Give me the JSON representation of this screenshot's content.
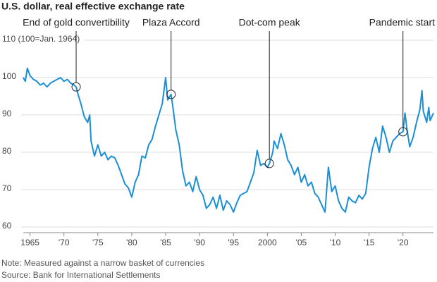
{
  "chart_data": {
    "type": "line",
    "title": "U.S. dollar, real effective exchange rate",
    "notes": [
      "Note: Measured against a narrow basket of currencies",
      "Source: Bank for International Settlements"
    ],
    "x": [
      1964.0,
      1964.3,
      1964.6,
      1965,
      1965.5,
      1966,
      1966.5,
      1967,
      1967.5,
      1968,
      1968.5,
      1969,
      1969.5,
      1970,
      1970.5,
      1971,
      1971.5,
      1971.8,
      1972,
      1972.5,
      1973,
      1973.5,
      1973.8,
      1974,
      1974.5,
      1975,
      1975.5,
      1976,
      1976.5,
      1977,
      1977.5,
      1978,
      1978.5,
      1979,
      1979.5,
      1980,
      1980.5,
      1981,
      1981.5,
      1982,
      1982.5,
      1983,
      1983.5,
      1984,
      1984.5,
      1985,
      1985.3,
      1985.8,
      1986,
      1986.5,
      1987,
      1987.5,
      1988,
      1988.5,
      1989,
      1989.5,
      1990,
      1990.5,
      1991,
      1991.5,
      1992,
      1992.5,
      1993,
      1993.5,
      1994,
      1994.5,
      1995,
      1995.5,
      1996,
      1996.5,
      1997,
      1997.5,
      1998,
      1998.5,
      1999,
      1999.5,
      2000,
      2000.3,
      2000.8,
      2001,
      2001.5,
      2002,
      2002.5,
      2003,
      2003.5,
      2004,
      2004.5,
      2005,
      2005.5,
      2006,
      2006.5,
      2007,
      2007.5,
      2008,
      2008.5,
      2009,
      2009.5,
      2010,
      2010.5,
      2011,
      2011.5,
      2012,
      2012.5,
      2013,
      2013.5,
      2014,
      2014.5,
      2015,
      2015.5,
      2016,
      2016.5,
      2017,
      2017.5,
      2018,
      2018.5,
      2019,
      2019.5,
      2020,
      2020.3,
      2020.6,
      2021,
      2021.5,
      2022,
      2022.5,
      2022.8,
      2023,
      2023.5,
      2023.8,
      2024,
      2024.5
    ],
    "series": [
      {
        "name": "Real effective exchange rate",
        "color": "#1a8fd6",
        "values": [
          100,
          99,
          102.5,
          100.5,
          99.5,
          99,
          98,
          98.5,
          97.5,
          98.5,
          99,
          99.5,
          100,
          99,
          99.5,
          98.5,
          98,
          97.5,
          96,
          93,
          89.5,
          88,
          90,
          83,
          79,
          82,
          79,
          80,
          78,
          79,
          78.5,
          76.5,
          74,
          71.5,
          70.5,
          68,
          72,
          74,
          79,
          78.5,
          82,
          83.5,
          87,
          90,
          93,
          100,
          94,
          95.5,
          93,
          86,
          82,
          75,
          71,
          72,
          69.5,
          73.5,
          70,
          68.5,
          65,
          66,
          68,
          65,
          68.5,
          64.5,
          67,
          66,
          64,
          66.5,
          68.5,
          69,
          69.5,
          72,
          74.5,
          80.5,
          76.5,
          77,
          76,
          77,
          80,
          83,
          81,
          85,
          82,
          78,
          76.5,
          74,
          76,
          72,
          74,
          71,
          72,
          69,
          68,
          66,
          64,
          76,
          69.5,
          71,
          67,
          65,
          64,
          68,
          67,
          66.5,
          68.5,
          67.5,
          69,
          76,
          81,
          84,
          80,
          87,
          84,
          80,
          83,
          84,
          85,
          85.5,
          90.5,
          86,
          81.5,
          84,
          88,
          91.5,
          96.5,
          91,
          88,
          92,
          88.5,
          90.5
        ]
      }
    ],
    "xlim": [
      1964,
      2024.5
    ],
    "ylim": [
      58.5,
      110
    ],
    "xticks": [
      {
        "value": 1965,
        "label": "1965"
      },
      {
        "value": 1970,
        "label": "'70"
      },
      {
        "value": 1975,
        "label": "'75"
      },
      {
        "value": 1980,
        "label": "'80"
      },
      {
        "value": 1985,
        "label": "'85"
      },
      {
        "value": 1990,
        "label": "'90"
      },
      {
        "value": 1995,
        "label": "'95"
      },
      2000,
      {
        "value": 2005,
        "label": "'05"
      },
      {
        "value": 2010,
        "label": "'10"
      },
      {
        "value": 2015,
        "label": "'15"
      },
      {
        "value": 2020,
        "label": "'20"
      }
    ],
    "yticks": [
      60,
      70,
      80,
      90,
      100,
      {
        "value": 110,
        "label": "110 (100=Jan. 1964)"
      }
    ],
    "grid": true,
    "annotations": [
      {
        "text": "End of gold convertibility",
        "x": 1971.8,
        "y": 97.5
      },
      {
        "text": "Plaza Accord",
        "x": 1985.8,
        "y": 95.5
      },
      {
        "text": "Dot-com peak",
        "x": 2000.3,
        "y": 77
      },
      {
        "text": "Pandemic start",
        "x": 2020,
        "y": 85.5
      }
    ]
  }
}
